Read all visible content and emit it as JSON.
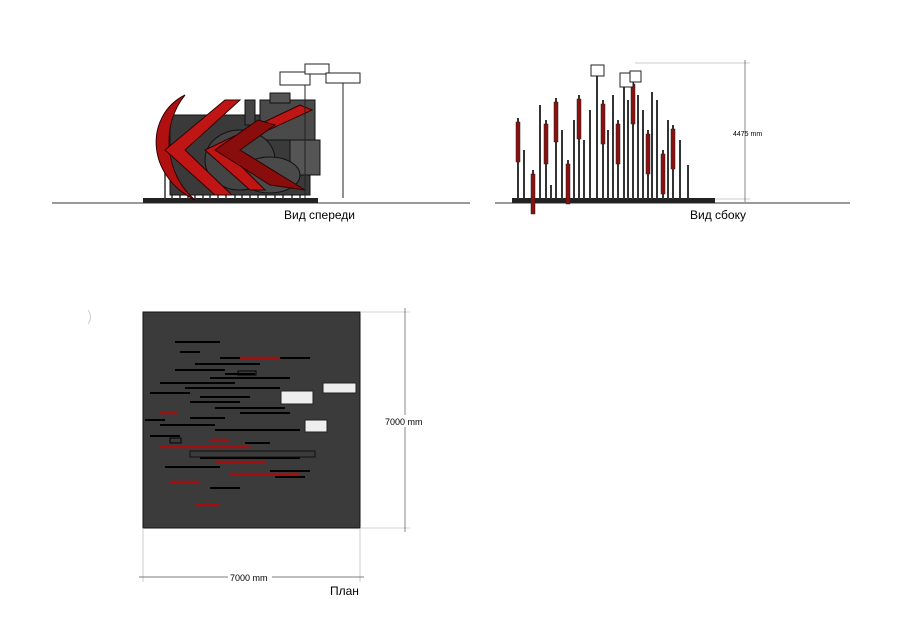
{
  "views": [
    {
      "label": "Вид спереди"
    },
    {
      "label": "Вид сбоку",
      "dimension": "4475 mm"
    }
  ],
  "plan": {
    "label": "План",
    "depth": "7000 mm",
    "width": "7000 mm"
  }
}
